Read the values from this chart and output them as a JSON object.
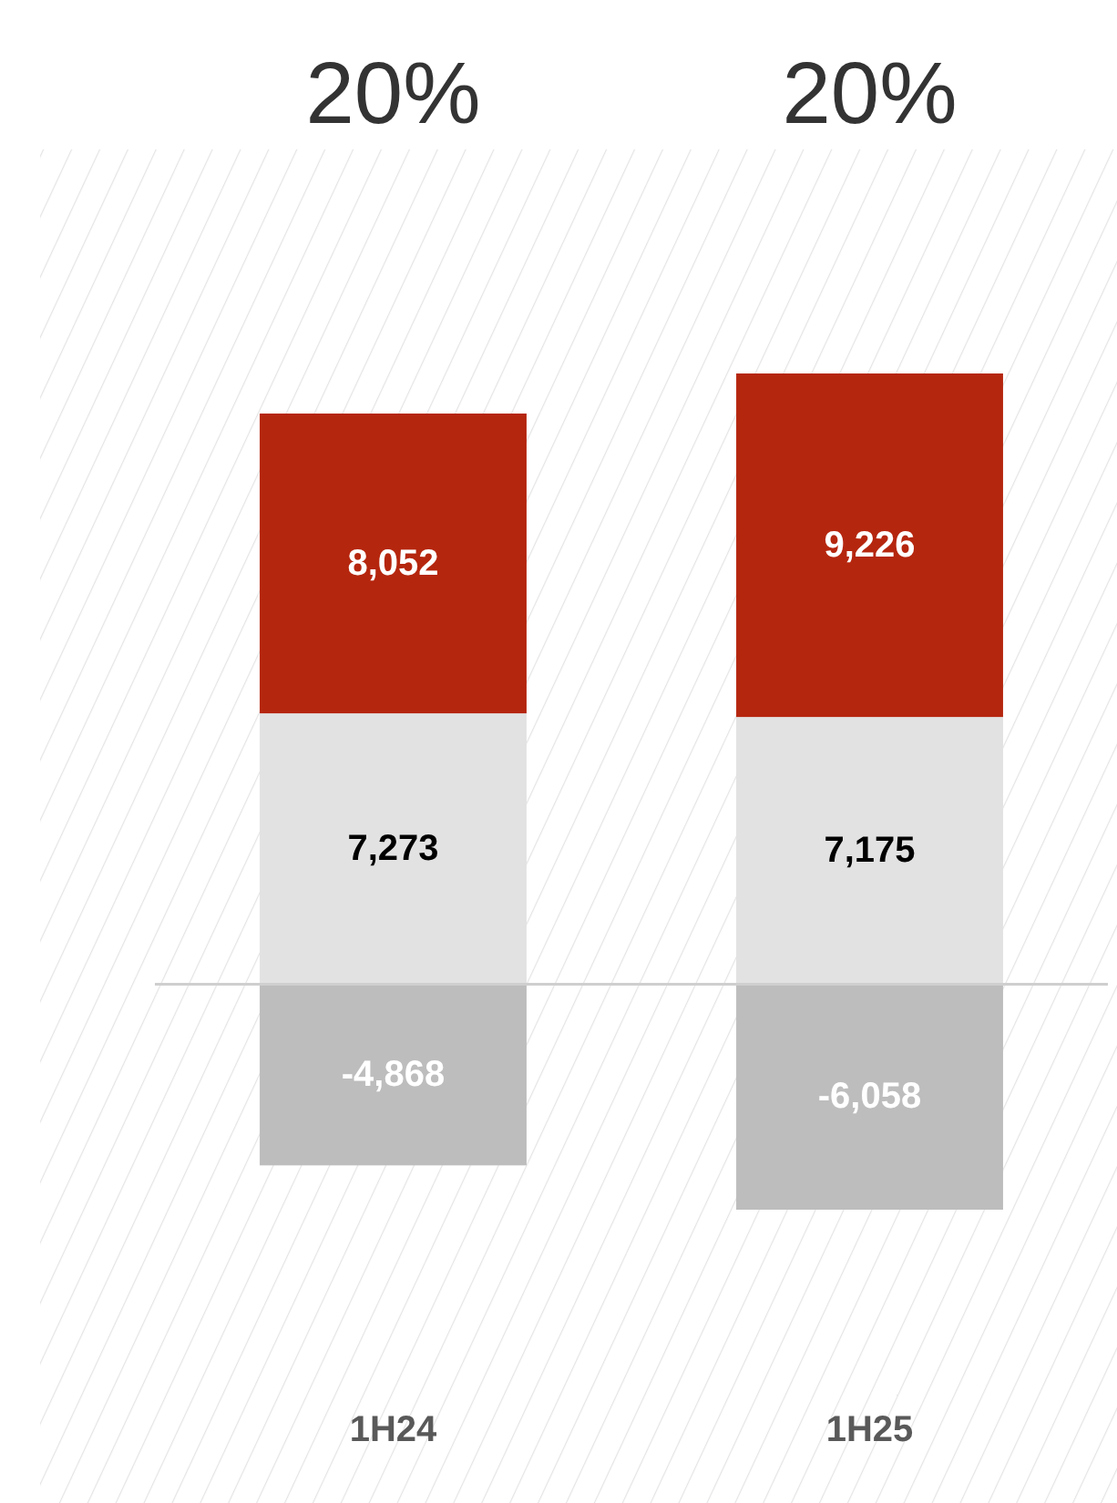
{
  "chart_data": {
    "type": "bar",
    "stacked": true,
    "categories": [
      "1H24",
      "1H25"
    ],
    "series": [
      {
        "color": "#bdbdbd",
        "values": [
          -4868,
          -6058
        ],
        "value_labels": [
          "-4,868",
          "-6,058"
        ]
      },
      {
        "color": "#e2e2e2",
        "values": [
          7273,
          7175
        ],
        "value_labels": [
          "7,273",
          "7,175"
        ]
      },
      {
        "color": "#b5260e",
        "values": [
          8052,
          9226
        ],
        "value_labels": [
          "8,052",
          "9,226"
        ]
      }
    ],
    "annotations": [
      "20%",
      "20%"
    ]
  }
}
